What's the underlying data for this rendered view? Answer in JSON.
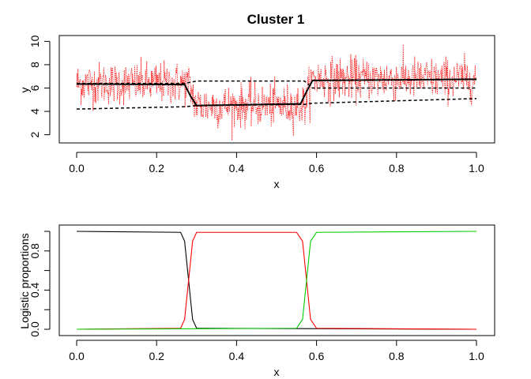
{
  "chart_data": [
    {
      "type": "line",
      "title": "Cluster 1",
      "xlabel": "x",
      "ylabel": "y",
      "xlim": [
        0,
        1
      ],
      "ylim": [
        1.3,
        10.5
      ],
      "xticks": [
        0.0,
        0.2,
        0.4,
        0.6,
        0.8,
        1.0
      ],
      "xtick_labels": [
        "0.0",
        "0.2",
        "0.4",
        "0.6",
        "0.8",
        "1.0"
      ],
      "yticks": [
        2,
        4,
        6,
        8,
        10
      ],
      "ytick_labels": [
        "2",
        "4",
        "6",
        "8",
        "10"
      ],
      "grid": false,
      "series": [
        {
          "style": "dotted",
          "color": "#ff0000",
          "description_segments": [
            {
              "x_start": 0.0,
              "x_end": 0.28,
              "level": 6.4
            },
            {
              "x_start": 0.3,
              "x_end": 0.57,
              "level": 4.5
            },
            {
              "x_start": 0.59,
              "x_end": 1.0,
              "level": 6.8
            }
          ],
          "noise_sd": 0.9
        },
        {
          "style": "solid",
          "color": "#000000",
          "x": [
            0.0,
            0.27,
            0.285,
            0.3,
            0.56,
            0.575,
            0.59,
            1.0
          ],
          "y": [
            6.35,
            6.3,
            5.3,
            4.5,
            4.65,
            5.7,
            6.65,
            6.75
          ]
        },
        {
          "style": "dashed",
          "color": "#000000",
          "x": [
            0.0,
            0.27,
            0.3,
            0.57,
            0.59,
            1.0
          ],
          "y": [
            6.4,
            6.4,
            6.6,
            6.6,
            6.0,
            6.0
          ]
        },
        {
          "style": "dashed",
          "color": "#000000",
          "x": [
            0.0,
            0.27,
            0.3,
            0.57,
            0.59,
            1.0
          ],
          "y": [
            4.2,
            4.4,
            4.5,
            4.6,
            4.7,
            5.1
          ]
        }
      ]
    },
    {
      "type": "line",
      "title": "",
      "xlabel": "x",
      "ylabel": "Logistic proportions",
      "xlim": [
        0,
        1
      ],
      "ylim": [
        0,
        1
      ],
      "xticks": [
        0.0,
        0.2,
        0.4,
        0.6,
        0.8,
        1.0
      ],
      "xtick_labels": [
        "0.0",
        "0.2",
        "0.4",
        "0.6",
        "0.8",
        "1.0"
      ],
      "yticks": [
        0.0,
        0.4,
        0.8
      ],
      "ytick_labels": [
        "0.0",
        "0.4",
        "0.8"
      ],
      "minor_yticks": [
        0.2,
        0.6,
        1.0
      ],
      "grid": false,
      "series": [
        {
          "color": "#000000",
          "x": [
            0.0,
            0.26,
            0.27,
            0.28,
            0.29,
            0.3,
            1.0
          ],
          "y": [
            1.0,
            0.99,
            0.9,
            0.5,
            0.1,
            0.01,
            0.0
          ]
        },
        {
          "color": "#ff0000",
          "x": [
            0.0,
            0.26,
            0.27,
            0.28,
            0.29,
            0.3,
            0.55,
            0.565,
            0.575,
            0.585,
            0.6,
            1.0
          ],
          "y": [
            0.0,
            0.01,
            0.1,
            0.5,
            0.9,
            0.99,
            0.99,
            0.9,
            0.5,
            0.1,
            0.01,
            0.0
          ]
        },
        {
          "color": "#00cc00",
          "x": [
            0.0,
            0.55,
            0.565,
            0.575,
            0.585,
            0.6,
            1.0
          ],
          "y": [
            0.0,
            0.01,
            0.1,
            0.5,
            0.9,
            0.99,
            1.0
          ]
        }
      ]
    }
  ]
}
